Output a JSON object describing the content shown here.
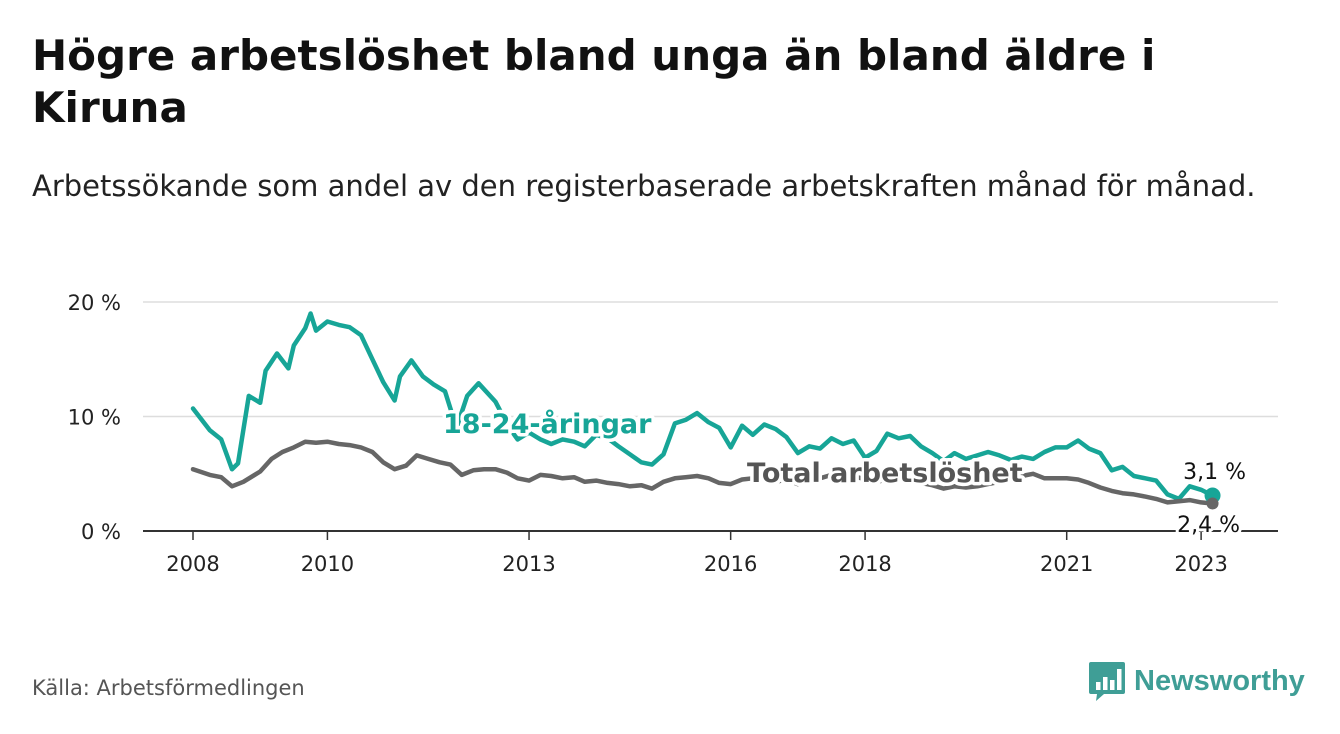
{
  "header": {
    "title": "Högre arbetslöshet bland unga än bland äldre i Kiruna",
    "subtitle": "Arbetssökande som andel av den registerbaserade arbetskraften månad för månad."
  },
  "footer": {
    "source": "Källa: Arbetsförmedlingen",
    "brand": "Newsworthy"
  },
  "colors": {
    "youth": "#17a597",
    "total": "#666666",
    "grid": "#dddddd",
    "brand": "#3f9e96"
  },
  "chart_data": {
    "type": "line",
    "title": "Högre arbetslöshet bland unga än bland äldre i Kiruna",
    "subtitle": "Arbetssökande som andel av den registerbaserade arbetskraften månad för månad.",
    "xlabel": "",
    "ylabel": "",
    "x_range": [
      2008,
      2023.4
    ],
    "ylim": [
      0,
      20
    ],
    "y_ticks": [
      0,
      10,
      20
    ],
    "y_tick_labels": [
      "0 %",
      "10 %",
      "20 %"
    ],
    "x_ticks": [
      2008,
      2010,
      2013,
      2016,
      2018,
      2021,
      2023
    ],
    "x_tick_labels": [
      "2008",
      "2010",
      "2013",
      "2016",
      "2018",
      "2021",
      "2023"
    ],
    "grid": true,
    "series": [
      {
        "name": "18-24-åringar",
        "label": "18-24-åringar",
        "end_label": "3,1 %",
        "points": [
          [
            2008.0,
            10.7
          ],
          [
            2008.25,
            8.8
          ],
          [
            2008.42,
            8.0
          ],
          [
            2008.58,
            5.4
          ],
          [
            2008.67,
            5.9
          ],
          [
            2008.83,
            11.8
          ],
          [
            2009.0,
            11.2
          ],
          [
            2009.08,
            14.0
          ],
          [
            2009.25,
            15.5
          ],
          [
            2009.42,
            14.2
          ],
          [
            2009.5,
            16.2
          ],
          [
            2009.67,
            17.7
          ],
          [
            2009.75,
            19.0
          ],
          [
            2009.83,
            17.5
          ],
          [
            2010.0,
            18.3
          ],
          [
            2010.17,
            18.0
          ],
          [
            2010.33,
            17.8
          ],
          [
            2010.5,
            17.1
          ],
          [
            2010.67,
            15.0
          ],
          [
            2010.83,
            13.0
          ],
          [
            2011.0,
            11.4
          ],
          [
            2011.08,
            13.5
          ],
          [
            2011.25,
            14.9
          ],
          [
            2011.42,
            13.5
          ],
          [
            2011.58,
            12.8
          ],
          [
            2011.75,
            12.2
          ],
          [
            2011.92,
            9.0
          ],
          [
            2012.08,
            11.8
          ],
          [
            2012.25,
            12.9
          ],
          [
            2012.5,
            11.3
          ],
          [
            2012.58,
            10.4
          ],
          [
            2012.67,
            9.3
          ],
          [
            2012.83,
            8.0
          ],
          [
            2013.0,
            8.6
          ],
          [
            2013.17,
            8.0
          ],
          [
            2013.33,
            7.6
          ],
          [
            2013.5,
            8.0
          ],
          [
            2013.67,
            7.8
          ],
          [
            2013.83,
            7.4
          ],
          [
            2014.0,
            8.4
          ],
          [
            2014.17,
            8.1
          ],
          [
            2014.33,
            7.4
          ],
          [
            2014.5,
            6.7
          ],
          [
            2014.67,
            6.0
          ],
          [
            2014.83,
            5.8
          ],
          [
            2015.0,
            6.7
          ],
          [
            2015.17,
            9.4
          ],
          [
            2015.33,
            9.7
          ],
          [
            2015.5,
            10.3
          ],
          [
            2015.67,
            9.5
          ],
          [
            2015.83,
            9.0
          ],
          [
            2016.0,
            7.3
          ],
          [
            2016.17,
            9.2
          ],
          [
            2016.33,
            8.4
          ],
          [
            2016.5,
            9.3
          ],
          [
            2016.67,
            8.9
          ],
          [
            2016.83,
            8.2
          ],
          [
            2017.0,
            6.8
          ],
          [
            2017.17,
            7.4
          ],
          [
            2017.33,
            7.2
          ],
          [
            2017.5,
            8.1
          ],
          [
            2017.67,
            7.6
          ],
          [
            2017.83,
            7.9
          ],
          [
            2018.0,
            6.4
          ],
          [
            2018.17,
            7.0
          ],
          [
            2018.33,
            8.5
          ],
          [
            2018.5,
            8.1
          ],
          [
            2018.67,
            8.3
          ],
          [
            2018.83,
            7.4
          ],
          [
            2019.0,
            6.8
          ],
          [
            2019.17,
            6.1
          ],
          [
            2019.33,
            6.8
          ],
          [
            2019.5,
            6.3
          ],
          [
            2019.67,
            6.6
          ],
          [
            2019.83,
            6.9
          ],
          [
            2020.0,
            6.6
          ],
          [
            2020.17,
            6.2
          ],
          [
            2020.33,
            6.5
          ],
          [
            2020.5,
            6.3
          ],
          [
            2020.67,
            6.9
          ],
          [
            2020.83,
            7.3
          ],
          [
            2021.0,
            7.3
          ],
          [
            2021.17,
            7.9
          ],
          [
            2021.33,
            7.2
          ],
          [
            2021.5,
            6.8
          ],
          [
            2021.67,
            5.3
          ],
          [
            2021.83,
            5.6
          ],
          [
            2022.0,
            4.8
          ],
          [
            2022.17,
            4.6
          ],
          [
            2022.33,
            4.4
          ],
          [
            2022.5,
            3.2
          ],
          [
            2022.67,
            2.8
          ],
          [
            2022.83,
            3.9
          ],
          [
            2023.0,
            3.6
          ],
          [
            2023.17,
            3.1
          ]
        ]
      },
      {
        "name": "Total arbetslöshet",
        "label": "Total arbetslöshet",
        "end_label": "2,4 %",
        "points": [
          [
            2008.0,
            5.4
          ],
          [
            2008.25,
            4.9
          ],
          [
            2008.42,
            4.7
          ],
          [
            2008.58,
            3.9
          ],
          [
            2008.75,
            4.3
          ],
          [
            2009.0,
            5.2
          ],
          [
            2009.17,
            6.3
          ],
          [
            2009.33,
            6.9
          ],
          [
            2009.5,
            7.3
          ],
          [
            2009.67,
            7.8
          ],
          [
            2009.83,
            7.7
          ],
          [
            2010.0,
            7.8
          ],
          [
            2010.17,
            7.6
          ],
          [
            2010.33,
            7.5
          ],
          [
            2010.5,
            7.3
          ],
          [
            2010.67,
            6.9
          ],
          [
            2010.83,
            6.0
          ],
          [
            2011.0,
            5.4
          ],
          [
            2011.17,
            5.7
          ],
          [
            2011.33,
            6.6
          ],
          [
            2011.5,
            6.3
          ],
          [
            2011.67,
            6.0
          ],
          [
            2011.83,
            5.8
          ],
          [
            2012.0,
            4.9
          ],
          [
            2012.17,
            5.3
          ],
          [
            2012.33,
            5.4
          ],
          [
            2012.5,
            5.4
          ],
          [
            2012.67,
            5.1
          ],
          [
            2012.83,
            4.6
          ],
          [
            2013.0,
            4.4
          ],
          [
            2013.17,
            4.9
          ],
          [
            2013.33,
            4.8
          ],
          [
            2013.5,
            4.6
          ],
          [
            2013.67,
            4.7
          ],
          [
            2013.83,
            4.3
          ],
          [
            2014.0,
            4.4
          ],
          [
            2014.17,
            4.2
          ],
          [
            2014.33,
            4.1
          ],
          [
            2014.5,
            3.9
          ],
          [
            2014.67,
            4.0
          ],
          [
            2014.83,
            3.7
          ],
          [
            2015.0,
            4.3
          ],
          [
            2015.17,
            4.6
          ],
          [
            2015.33,
            4.7
          ],
          [
            2015.5,
            4.8
          ],
          [
            2015.67,
            4.6
          ],
          [
            2015.83,
            4.2
          ],
          [
            2016.0,
            4.1
          ],
          [
            2016.17,
            4.5
          ],
          [
            2016.33,
            4.6
          ],
          [
            2016.5,
            4.6
          ],
          [
            2016.67,
            4.3
          ],
          [
            2016.83,
            4.5
          ],
          [
            2017.0,
            4.1
          ],
          [
            2017.17,
            4.5
          ],
          [
            2017.33,
            4.6
          ],
          [
            2017.5,
            4.9
          ],
          [
            2017.67,
            4.5
          ],
          [
            2017.83,
            4.8
          ],
          [
            2018.0,
            4.5
          ],
          [
            2018.17,
            4.3
          ],
          [
            2018.33,
            4.5
          ],
          [
            2018.5,
            4.5
          ],
          [
            2018.67,
            4.3
          ],
          [
            2018.83,
            4.2
          ],
          [
            2019.0,
            4.0
          ],
          [
            2019.17,
            3.7
          ],
          [
            2019.33,
            3.9
          ],
          [
            2019.5,
            3.8
          ],
          [
            2019.67,
            3.9
          ],
          [
            2019.83,
            4.1
          ],
          [
            2020.0,
            4.3
          ],
          [
            2020.17,
            4.6
          ],
          [
            2020.33,
            4.8
          ],
          [
            2020.5,
            5.0
          ],
          [
            2020.67,
            4.6
          ],
          [
            2020.83,
            4.6
          ],
          [
            2021.0,
            4.6
          ],
          [
            2021.17,
            4.5
          ],
          [
            2021.33,
            4.2
          ],
          [
            2021.5,
            3.8
          ],
          [
            2021.67,
            3.5
          ],
          [
            2021.83,
            3.3
          ],
          [
            2022.0,
            3.2
          ],
          [
            2022.17,
            3.0
          ],
          [
            2022.33,
            2.8
          ],
          [
            2022.5,
            2.5
          ],
          [
            2022.67,
            2.6
          ],
          [
            2022.83,
            2.7
          ],
          [
            2023.0,
            2.5
          ],
          [
            2023.17,
            2.4
          ]
        ]
      }
    ]
  }
}
